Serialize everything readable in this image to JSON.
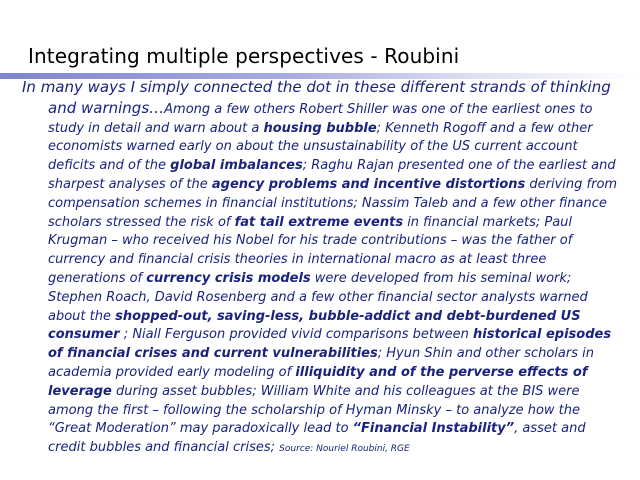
{
  "slide": {
    "title": "Integrating multiple perspectives - Roubini"
  },
  "body": {
    "lead_line1": "In many ways I simply connected the dot in these different strands of thinking",
    "lead_line2": "and warnings…",
    "s1": "Among a few others Robert Shiller was one of the earliest ones to study in detail and warn about a ",
    "b1": "housing bubble",
    "s2": "; Kenneth Rogoff and a few other economists warned early on about the unsustainability of the US current account deficits and of the ",
    "b2": "global imbalances",
    "s3": "; Raghu Rajan presented one of the earliest and sharpest analyses of the ",
    "b3": "agency problems and incentive distortions",
    "s4": " deriving from compensation schemes in financial institutions; Nassim Taleb and a few other finance scholars stressed the risk of ",
    "b4": "fat tail extreme events",
    "s5": " in financial markets;  Paul Krugman – who received his Nobel for his trade contributions – was the father of currency and financial crisis theories in international macro as at least three generations of ",
    "b5": "currency crisis models",
    "s6": " were developed from his seminal work; Stephen Roach, David Rosenberg and a few other financial sector analysts warned about the ",
    "b6": "shopped-out, saving-less, bubble-addict and debt-burdened US consumer",
    "s7": " ; Niall Ferguson provided vivid comparisons between ",
    "b7": "historical episodes of financial crises and current vulnerabilities",
    "s8": "; Hyun Shin and other scholars in academia provided early modeling of ",
    "b8": "illiquidity and of the perverse effects of leverage",
    "s9": " during asset bubbles; William White and his colleagues at the BIS were among the first – following the scholarship of Hyman Minsky – to analyze how the “Great Moderation” may  paradoxically lead to ",
    "b9": "“Financial Instability”",
    "s10": ", asset and credit  bubbles and financial crises;  ",
    "source": "Source: Nouriel Roubini, RGE"
  }
}
